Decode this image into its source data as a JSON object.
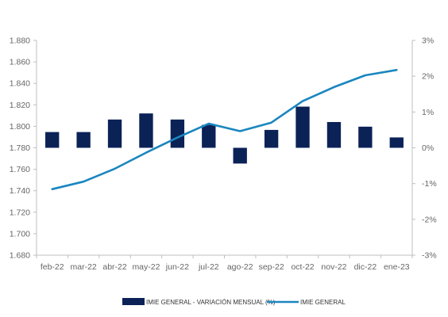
{
  "chart_data": {
    "type": "bar+line",
    "categories": [
      "feb-22",
      "mar-22",
      "abr-22",
      "may-22",
      "jun-22",
      "jul-22",
      "ago-22",
      "sep-22",
      "oct-22",
      "nov-22",
      "dic-22",
      "ene-23"
    ],
    "series": [
      {
        "name": "IMIE GENERAL - VARIACIÓN MENSUAL (%)",
        "type": "bar",
        "axis": "right",
        "color": "#0b2257",
        "values": [
          0.44,
          0.44,
          0.79,
          0.96,
          0.79,
          0.64,
          -0.44,
          0.5,
          1.15,
          0.72,
          0.59,
          0.29
        ]
      },
      {
        "name": "IMIE GENERAL",
        "type": "line",
        "axis": "left",
        "color": "#1a86bf",
        "values": [
          1.7415,
          1.7485,
          1.7605,
          1.7755,
          1.7895,
          1.8025,
          1.7955,
          1.8035,
          1.8235,
          1.8365,
          1.8475,
          1.8525
        ]
      }
    ],
    "y_left": {
      "ylim": [
        1.68,
        1.88
      ],
      "ticks": [
        "1.680",
        "1.700",
        "1.720",
        "1.740",
        "1.760",
        "1.780",
        "1.800",
        "1.820",
        "1.840",
        "1.860",
        "1.880"
      ]
    },
    "y_right": {
      "ylim": [
        -3,
        3
      ],
      "ticks": [
        "-3%",
        "-2%",
        "-1%",
        "0%",
        "1%",
        "2%",
        "3%"
      ]
    },
    "grid": false,
    "legend_position": "bottom"
  }
}
